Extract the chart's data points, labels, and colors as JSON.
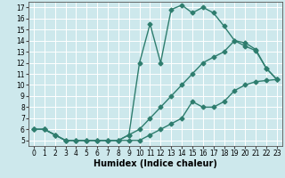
{
  "title": "",
  "xlabel": "Humidex (Indice chaleur)",
  "xlim": [
    -0.5,
    23.5
  ],
  "ylim": [
    4.5,
    17.5
  ],
  "xticks": [
    0,
    1,
    2,
    3,
    4,
    5,
    6,
    7,
    8,
    9,
    10,
    11,
    12,
    13,
    14,
    15,
    16,
    17,
    18,
    19,
    20,
    21,
    22,
    23
  ],
  "yticks": [
    5,
    6,
    7,
    8,
    9,
    10,
    11,
    12,
    13,
    14,
    15,
    16,
    17
  ],
  "color": "#2e7d6e",
  "bg_color": "#cde8ec",
  "line1_x": [
    0,
    1,
    2,
    3,
    4,
    5,
    6,
    7,
    8,
    9,
    10,
    11,
    12,
    13,
    14,
    15,
    16,
    17,
    18,
    19,
    20,
    21,
    22,
    23
  ],
  "line1_y": [
    6,
    6,
    5.5,
    5,
    5,
    5,
    5,
    5,
    5,
    5,
    5,
    5.5,
    6,
    6.5,
    7,
    8.5,
    8,
    8,
    8.5,
    9.5,
    10,
    10.3,
    10.4,
    10.5
  ],
  "line2_x": [
    0,
    1,
    2,
    3,
    4,
    5,
    6,
    7,
    8,
    9,
    10,
    11,
    12,
    13,
    14,
    15,
    16,
    17,
    18,
    19,
    20,
    21,
    22,
    23
  ],
  "line2_y": [
    6,
    6,
    5.5,
    5,
    5,
    5,
    5,
    5,
    5,
    5.5,
    12,
    15.5,
    12,
    16.8,
    17.2,
    16.5,
    17,
    16.5,
    15.3,
    14,
    13.5,
    13.1,
    11.5,
    10.5
  ],
  "line3_x": [
    0,
    1,
    2,
    3,
    4,
    5,
    6,
    7,
    8,
    9,
    10,
    11,
    12,
    13,
    14,
    15,
    16,
    17,
    18,
    19,
    20,
    21,
    22,
    23
  ],
  "line3_y": [
    6,
    6,
    5.5,
    5,
    5,
    5,
    5,
    5,
    5,
    5.5,
    6,
    7,
    8,
    9,
    10,
    11,
    12,
    12.5,
    13,
    14,
    13.8,
    13.2,
    11.5,
    10.5
  ],
  "marker": "D",
  "markersize": 2.5,
  "linewidth": 1.0,
  "tick_fontsize": 5.5,
  "xlabel_fontsize": 7
}
